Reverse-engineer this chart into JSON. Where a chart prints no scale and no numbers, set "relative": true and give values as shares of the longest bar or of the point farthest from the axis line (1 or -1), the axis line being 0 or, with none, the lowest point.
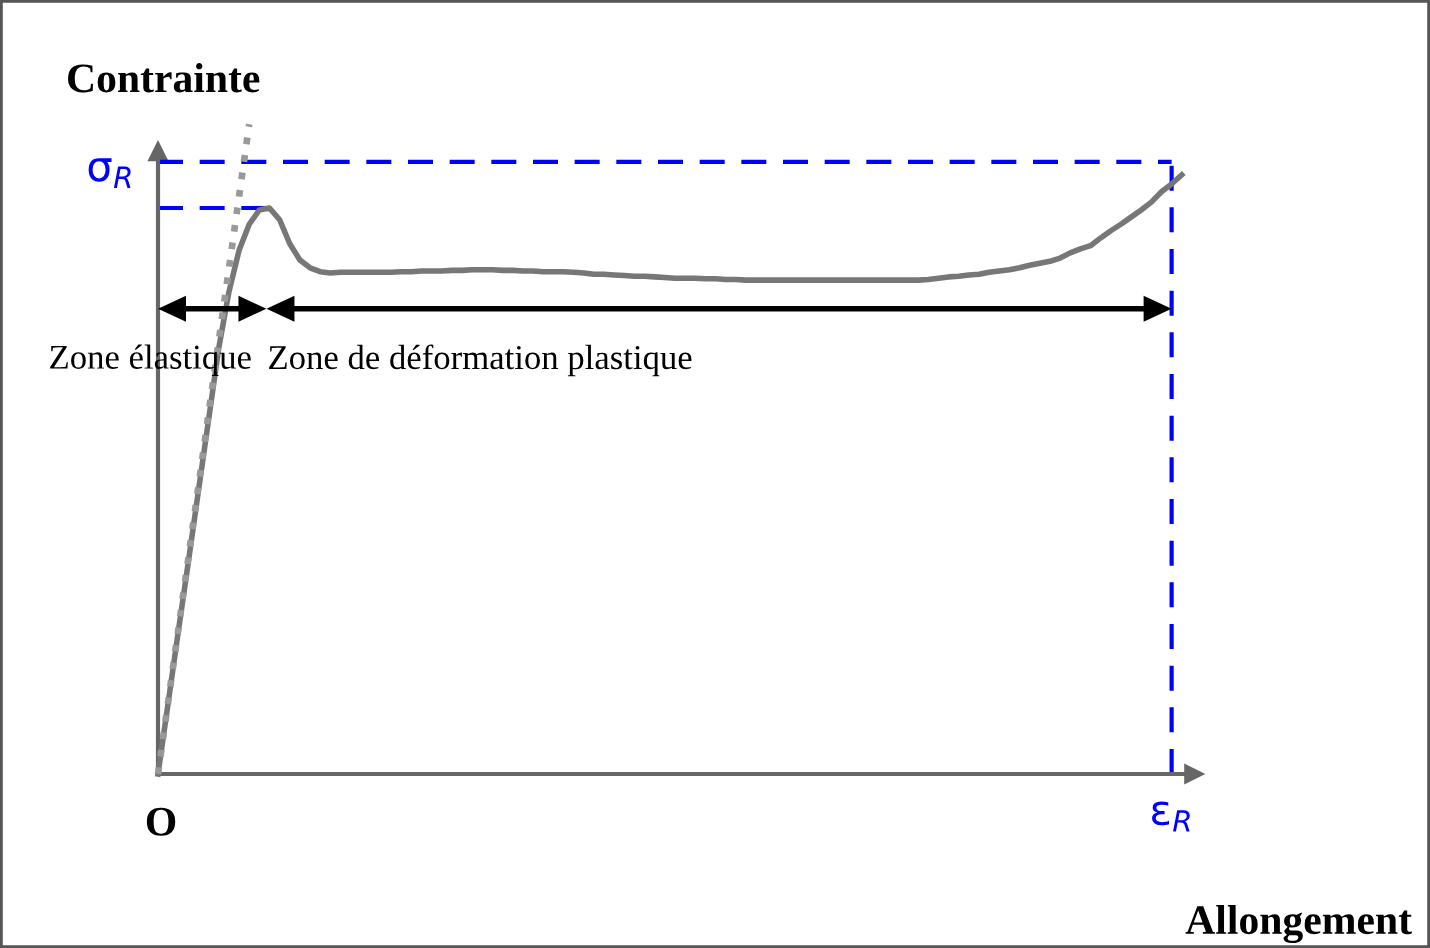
{
  "chart_data": {
    "type": "line",
    "relative": true,
    "xlabel": "Allongement",
    "ylabel": "Contrainte",
    "categories": [
      null,
      null,
      null,
      null,
      null,
      null,
      null,
      null,
      null,
      null,
      null,
      null,
      null,
      null,
      null,
      null,
      null,
      null,
      null,
      null,
      null,
      null,
      null,
      null,
      null,
      null,
      null,
      null,
      null,
      null,
      null,
      null,
      null,
      null,
      null,
      null,
      null,
      null,
      null,
      null,
      null,
      null,
      null,
      null,
      null,
      null,
      null,
      null,
      null,
      null,
      null,
      null,
      null,
      null,
      null,
      null,
      null,
      null,
      null,
      null,
      null,
      null,
      null,
      null,
      null,
      null,
      null,
      null,
      null,
      null,
      null,
      null,
      null,
      null,
      null,
      null,
      null,
      null,
      null,
      null,
      null,
      null,
      null,
      null,
      null,
      null,
      null,
      null,
      null,
      null,
      null,
      null,
      null,
      null,
      null,
      null,
      null,
      null,
      null,
      null,
      null,
      null
    ],
    "series": [
      {
        "type": "line",
        "color": "#777777",
        "line_style": "solid",
        "values": [
          0,
          0.109,
          0.219,
          0.327,
          0.437,
          0.546,
          0.656,
          0.742,
          0.806,
          0.846,
          0.868,
          0.871,
          0.853,
          0.816,
          0.791,
          0.779,
          0.773,
          0.771,
          0.772,
          0.772,
          0.772,
          0.772,
          0.772,
          0.772,
          0.773,
          0.773,
          0.774,
          0.774,
          0.774,
          0.775,
          0.775,
          0.776,
          0.776,
          0.776,
          0.775,
          0.775,
          0.774,
          0.774,
          0.773,
          0.773,
          0.773,
          0.772,
          0.771,
          0.769,
          0.769,
          0.768,
          0.767,
          0.766,
          0.766,
          0.765,
          0.764,
          0.763,
          0.763,
          0.763,
          0.762,
          0.762,
          0.761,
          0.761,
          0.76,
          0.76,
          0.76,
          0.76,
          0.76,
          0.76,
          0.76,
          0.76,
          0.76,
          0.76,
          0.76,
          0.76,
          0.76,
          0.76,
          0.76,
          0.76,
          0.76,
          0.76,
          0.761,
          0.763,
          0.765,
          0.766,
          0.768,
          0.769,
          0.772,
          0.774,
          0.776,
          0.779,
          0.783,
          0.786,
          0.789,
          0.794,
          0.802,
          0.808,
          0.813,
          0.825,
          0.836,
          0.846,
          0.857,
          0.868,
          0.88,
          0.896,
          0.908,
          0.922
        ]
      },
      {
        "type": "line",
        "color": "#999999",
        "line_style": "dotted",
        "values": [
          0,
          0.111,
          0.222,
          0.333,
          0.444,
          0.556,
          0.667,
          0.778,
          0.889,
          1,
          null,
          null,
          null,
          null,
          null,
          null,
          null,
          null,
          null,
          null,
          null,
          null,
          null,
          null,
          null,
          null,
          null,
          null,
          null,
          null,
          null,
          null,
          null,
          null,
          null,
          null,
          null,
          null,
          null,
          null,
          null,
          null,
          null,
          null,
          null,
          null,
          null,
          null,
          null,
          null,
          null,
          null,
          null,
          null,
          null,
          null,
          null,
          null,
          null,
          null,
          null,
          null,
          null,
          null,
          null,
          null,
          null,
          null,
          null,
          null,
          null,
          null,
          null,
          null,
          null,
          null,
          null,
          null,
          null,
          null,
          null,
          null,
          null,
          null,
          null,
          null,
          null,
          null,
          null,
          null,
          null,
          null,
          null,
          null,
          null,
          null,
          null,
          null,
          null,
          null,
          null,
          null
        ]
      }
    ],
    "ref_lines": [
      {
        "axis": "y",
        "value": 0.942,
        "label": "σ$_{R}$",
        "color": "#0000ff",
        "line_style": "dashed"
      },
      {
        "axis": "y",
        "value": 0.871,
        "color": "#0000ff",
        "line_style": "dashed"
      }
    ],
    "annotations": [
      "O",
      "Zone élastique",
      "Zone de déformation plastique",
      "ε$_{R}$"
    ],
    "legend": false,
    "grid": false,
    "tick_labels": false
  }
}
